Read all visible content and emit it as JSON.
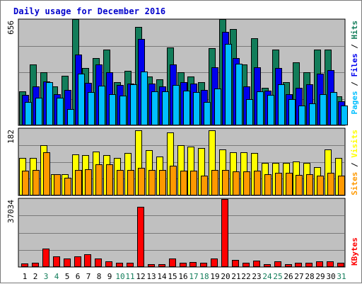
{
  "title": "Daily usage for December 2016",
  "colors": {
    "hits": "#127d5a",
    "files": "#0000ee",
    "pages": "#00bfff",
    "visits": "#ffff00",
    "sites": "#ff9900",
    "kbytes": "#ff0000",
    "weekday_label": "#000000",
    "weekend_label": "#127d5a",
    "slash": "#000000"
  },
  "chart_data": [
    {
      "type": "bar",
      "panel": "hits-files-pages",
      "y_max_label": "656",
      "ylim": [
        0,
        656
      ],
      "side_legend": [
        {
          "text": "Pages",
          "color": "pages"
        },
        {
          "text": " / ",
          "color": "slash"
        },
        {
          "text": "Files",
          "color": "files"
        },
        {
          "text": " / ",
          "color": "slash"
        },
        {
          "text": "Hits",
          "color": "hits"
        }
      ],
      "categories": [
        "1",
        "2",
        "3",
        "4",
        "5",
        "6",
        "7",
        "8",
        "9",
        "10",
        "11",
        "12",
        "13",
        "14",
        "15",
        "16",
        "17",
        "18",
        "19",
        "20",
        "21",
        "22",
        "23",
        "24",
        "25",
        "26",
        "27",
        "28",
        "29",
        "30",
        "31"
      ],
      "weekend": [
        false,
        false,
        true,
        true,
        false,
        false,
        false,
        false,
        false,
        true,
        true,
        false,
        false,
        false,
        false,
        false,
        true,
        true,
        false,
        false,
        false,
        false,
        false,
        true,
        true,
        false,
        false,
        false,
        false,
        false,
        true
      ],
      "series": [
        {
          "name": "Hits",
          "color": "hits",
          "values": [
            210,
            380,
            330,
            240,
            310,
            660,
            355,
            420,
            470,
            270,
            340,
            610,
            305,
            285,
            485,
            330,
            305,
            270,
            480,
            660,
            600,
            380,
            540,
            235,
            470,
            270,
            390,
            330,
            470,
            470,
            180
          ]
        },
        {
          "name": "Files",
          "color": "files",
          "values": [
            190,
            240,
            275,
            195,
            220,
            440,
            265,
            380,
            330,
            250,
            260,
            535,
            260,
            240,
            380,
            270,
            260,
            220,
            360,
            580,
            420,
            240,
            360,
            215,
            355,
            195,
            235,
            255,
            320,
            345,
            150
          ]
        },
        {
          "name": "Pages",
          "color": "pages",
          "values": [
            145,
            170,
            270,
            170,
            100,
            320,
            205,
            245,
            195,
            185,
            255,
            335,
            210,
            210,
            250,
            215,
            205,
            145,
            230,
            505,
            385,
            165,
            210,
            190,
            255,
            165,
            125,
            135,
            195,
            205,
            125
          ]
        }
      ]
    },
    {
      "type": "bar",
      "panel": "visits-sites",
      "y_max_label": "182",
      "ylim": [
        0,
        182
      ],
      "side_legend": [
        {
          "text": "Sites",
          "color": "sites"
        },
        {
          "text": " / ",
          "color": "slash"
        },
        {
          "text": "Visits",
          "color": "visits"
        }
      ],
      "categories": [
        "1",
        "2",
        "3",
        "4",
        "5",
        "6",
        "7",
        "8",
        "9",
        "10",
        "11",
        "12",
        "13",
        "14",
        "15",
        "16",
        "17",
        "18",
        "19",
        "20",
        "21",
        "22",
        "23",
        "24",
        "25",
        "26",
        "27",
        "28",
        "29",
        "30",
        "31"
      ],
      "series": [
        {
          "name": "Visits",
          "color": "visits",
          "values": [
            102,
            102,
            137,
            58,
            58,
            113,
            111,
            120,
            110,
            102,
            116,
            178,
            124,
            107,
            172,
            137,
            133,
            130,
            178,
            125,
            119,
            119,
            117,
            90,
            90,
            90,
            92,
            90,
            78,
            125,
            102
          ]
        },
        {
          "name": "Sites",
          "color": "sites",
          "values": [
            68,
            70,
            118,
            58,
            48,
            70,
            72,
            86,
            86,
            70,
            70,
            75,
            70,
            70,
            82,
            68,
            68,
            54,
            70,
            69,
            65,
            66,
            68,
            59,
            61,
            62,
            56,
            59,
            54,
            61,
            54
          ]
        }
      ]
    },
    {
      "type": "bar",
      "panel": "kbytes",
      "y_max_label": "37034",
      "ylim": [
        0,
        37034
      ],
      "side_legend": [
        {
          "text": "KBytes",
          "color": "kbytes"
        }
      ],
      "categories": [
        "1",
        "2",
        "3",
        "4",
        "5",
        "6",
        "7",
        "8",
        "9",
        "10",
        "11",
        "12",
        "13",
        "14",
        "15",
        "16",
        "17",
        "18",
        "19",
        "20",
        "21",
        "22",
        "23",
        "24",
        "25",
        "26",
        "27",
        "28",
        "29",
        "30",
        "31"
      ],
      "series": [
        {
          "name": "KBytes",
          "color": "kbytes",
          "values": [
            1900,
            2200,
            10200,
            5600,
            4600,
            5600,
            6800,
            4600,
            3200,
            2300,
            2300,
            32800,
            1600,
            1600,
            4600,
            2500,
            2600,
            2500,
            4500,
            37034,
            3700,
            2300,
            3300,
            1700,
            3000,
            1700,
            2200,
            2200,
            3100,
            3200,
            2200
          ]
        }
      ]
    }
  ]
}
